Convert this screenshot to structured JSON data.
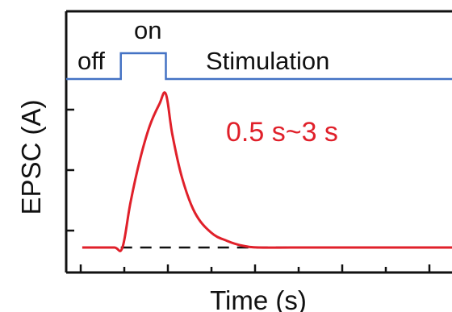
{
  "chart_data": {
    "type": "line",
    "xlabel": "Time (s)",
    "ylabel": "EPSC (A)",
    "x_ticks_labeled": false,
    "y_ticks_labeled": false,
    "stimulus": {
      "labels": {
        "off": "off",
        "on": "on",
        "name": "Stimulation"
      },
      "color": "#4472c4",
      "points": [
        [
          0.0,
          1
        ],
        [
          1.7,
          1
        ],
        [
          1.7,
          2
        ],
        [
          3.1,
          2
        ],
        [
          3.1,
          1
        ],
        [
          12.0,
          1
        ]
      ]
    },
    "series": [
      {
        "color": "#e0202a",
        "points": [
          [
            0.5,
            0.05
          ],
          [
            1.0,
            0.05
          ],
          [
            1.5,
            0.05
          ],
          [
            1.75,
            0.05
          ],
          [
            2.0,
            0.32
          ],
          [
            2.3,
            0.58
          ],
          [
            2.6,
            0.78
          ],
          [
            2.9,
            0.91
          ],
          [
            3.1,
            0.97
          ],
          [
            3.3,
            0.73
          ],
          [
            3.6,
            0.47
          ],
          [
            4.0,
            0.26
          ],
          [
            4.5,
            0.14
          ],
          [
            5.0,
            0.09
          ],
          [
            5.5,
            0.06
          ],
          [
            6.0,
            0.05
          ],
          [
            7.0,
            0.05
          ],
          [
            8.0,
            0.05
          ],
          [
            9.0,
            0.05
          ],
          [
            10.0,
            0.05
          ],
          [
            12.0,
            0.05
          ]
        ]
      }
    ],
    "baseline": {
      "y": 0.05,
      "x_start": 1.7,
      "x_end": 12.0,
      "style": "dashed",
      "color": "#111111"
    },
    "annotation": {
      "text": "0.5 s~3 s",
      "color": "#e0202a"
    },
    "xlim": [
      0,
      12
    ],
    "ylim": [
      -0.1,
      1.05
    ]
  }
}
